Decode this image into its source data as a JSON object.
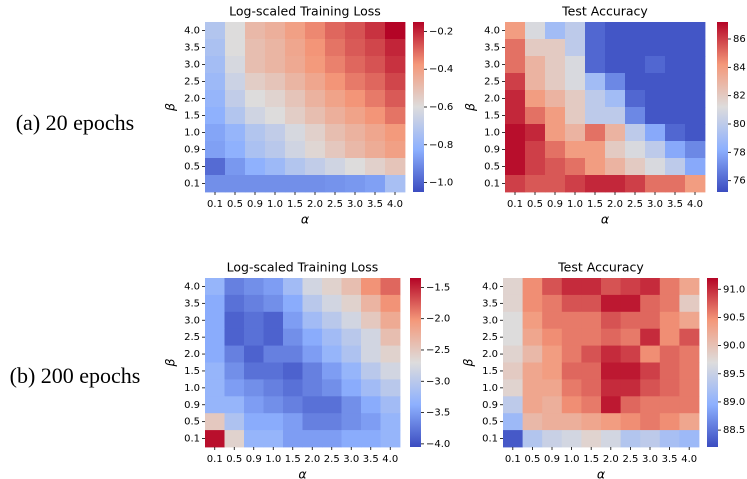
{
  "row_labels": [
    "(a) 20 epochs",
    "(b) 200 epochs"
  ],
  "chart_data": [
    {
      "type": "heatmap",
      "title": "Log-scaled Training Loss",
      "xlabel": "α",
      "ylabel": "β",
      "colormap": "coolwarm",
      "x": [
        "0.1",
        "0.5",
        "0.9",
        "1.0",
        "1.5",
        "2.0",
        "2.5",
        "3.0",
        "3.5",
        "4.0"
      ],
      "y": [
        "4.0",
        "3.5",
        "3.0",
        "2.5",
        "2.0",
        "1.5",
        "1.0",
        "0.9",
        "0.5",
        "0.1"
      ],
      "values": [
        [
          -0.72,
          -0.6,
          -0.48,
          -0.45,
          -0.4,
          -0.35,
          -0.3,
          -0.27,
          -0.22,
          -0.15
        ],
        [
          -0.74,
          -0.6,
          -0.5,
          -0.47,
          -0.42,
          -0.37,
          -0.32,
          -0.28,
          -0.25,
          -0.2
        ],
        [
          -0.76,
          -0.62,
          -0.5,
          -0.47,
          -0.43,
          -0.38,
          -0.34,
          -0.3,
          -0.27,
          -0.22
        ],
        [
          -0.78,
          -0.65,
          -0.55,
          -0.52,
          -0.47,
          -0.42,
          -0.37,
          -0.33,
          -0.3,
          -0.25
        ],
        [
          -0.8,
          -0.68,
          -0.6,
          -0.57,
          -0.52,
          -0.46,
          -0.41,
          -0.37,
          -0.33,
          -0.28
        ],
        [
          -0.82,
          -0.72,
          -0.64,
          -0.6,
          -0.55,
          -0.5,
          -0.45,
          -0.41,
          -0.37,
          -0.32
        ],
        [
          -0.85,
          -0.8,
          -0.72,
          -0.68,
          -0.62,
          -0.56,
          -0.5,
          -0.46,
          -0.42,
          -0.38
        ],
        [
          -0.86,
          -0.82,
          -0.74,
          -0.7,
          -0.64,
          -0.58,
          -0.53,
          -0.48,
          -0.44,
          -0.4
        ],
        [
          -0.98,
          -0.88,
          -0.82,
          -0.78,
          -0.72,
          -0.68,
          -0.64,
          -0.6,
          -0.56,
          -0.52
        ],
        [
          -0.9,
          -0.9,
          -0.9,
          -0.9,
          -0.9,
          -0.9,
          -0.89,
          -0.88,
          -0.86,
          -0.75
        ]
      ],
      "zlim": [
        -1.05,
        -0.15
      ],
      "zticks": [
        {
          "value": -0.2,
          "label": "−0.2"
        },
        {
          "value": -0.4,
          "label": "−0.4"
        },
        {
          "value": -0.6,
          "label": "−0.6"
        },
        {
          "value": -0.8,
          "label": "−0.8"
        },
        {
          "value": -1.0,
          "label": "−1.0"
        }
      ]
    },
    {
      "type": "heatmap",
      "title": "Test Accuracy",
      "xlabel": "α",
      "ylabel": "β",
      "colormap": "coolwarm",
      "x": [
        "0.1",
        "0.5",
        "0.9",
        "1.0",
        "1.5",
        "2.0",
        "2.5",
        "3.0",
        "3.5",
        "4.0"
      ],
      "y": [
        "4.0",
        "3.5",
        "3.0",
        "2.5",
        "2.0",
        "1.5",
        "1.0",
        "0.9",
        "0.5",
        "0.1"
      ],
      "values": [
        [
          84,
          81,
          79,
          80,
          76,
          75.5,
          75.5,
          75.5,
          75.5,
          75.5
        ],
        [
          85,
          82,
          82,
          80,
          76,
          75.5,
          75.5,
          75.5,
          75.5,
          75.5
        ],
        [
          85,
          83,
          82,
          81,
          76,
          75.5,
          75.5,
          76,
          75.5,
          75.5
        ],
        [
          86,
          83,
          82,
          81,
          79,
          77,
          75.5,
          75.5,
          75.5,
          75.5
        ],
        [
          86.5,
          84,
          83,
          82,
          80,
          79,
          76,
          75.5,
          75.5,
          75.5
        ],
        [
          86.5,
          85,
          84,
          82,
          80,
          80,
          77,
          75.5,
          75.5,
          75.5
        ],
        [
          87,
          86.5,
          84,
          83,
          85,
          83,
          80,
          78,
          76,
          75.5
        ],
        [
          87,
          86,
          85,
          84,
          84,
          82,
          81,
          80,
          78,
          77
        ],
        [
          87,
          86,
          85.5,
          85,
          84,
          83,
          82,
          81,
          80,
          78
        ],
        [
          86,
          85.5,
          85.5,
          86,
          86.5,
          86.5,
          86,
          85,
          85,
          84
        ]
      ],
      "zlim": [
        75.2,
        87.2
      ],
      "zticks": [
        76,
        78,
        80,
        82,
        84,
        86
      ]
    },
    {
      "type": "heatmap",
      "title": "Log-scaled Training Loss",
      "xlabel": "α",
      "ylabel": "β",
      "colormap": "coolwarm",
      "x": [
        "0.1",
        "0.5",
        "0.9",
        "1.0",
        "1.5",
        "2.0",
        "2.5",
        "3.0",
        "3.5",
        "4.0"
      ],
      "y": [
        "4.0",
        "3.5",
        "3.0",
        "2.5",
        "2.0",
        "1.5",
        "1.0",
        "0.9",
        "0.5",
        "0.1"
      ],
      "values": [
        [
          -3.3,
          -3.7,
          -3.6,
          -3.5,
          -3.2,
          -2.8,
          -2.6,
          -2.4,
          -2.0,
          -1.8
        ],
        [
          -3.4,
          -3.8,
          -3.7,
          -3.6,
          -3.4,
          -3.0,
          -2.8,
          -2.6,
          -2.3,
          -2.0
        ],
        [
          -3.4,
          -3.9,
          -3.8,
          -3.9,
          -3.5,
          -3.2,
          -3.0,
          -2.8,
          -2.5,
          -2.2
        ],
        [
          -3.4,
          -3.9,
          -3.8,
          -3.9,
          -3.6,
          -3.4,
          -3.2,
          -3.0,
          -2.8,
          -2.4
        ],
        [
          -3.4,
          -3.7,
          -3.9,
          -3.7,
          -3.7,
          -3.5,
          -3.3,
          -3.1,
          -2.8,
          -2.6
        ],
        [
          -3.3,
          -3.6,
          -3.8,
          -3.8,
          -3.9,
          -3.7,
          -3.5,
          -3.3,
          -3.0,
          -2.8
        ],
        [
          -3.3,
          -3.5,
          -3.6,
          -3.7,
          -3.8,
          -3.7,
          -3.6,
          -3.4,
          -3.2,
          -3.0
        ],
        [
          -3.3,
          -3.3,
          -3.5,
          -3.6,
          -3.7,
          -3.8,
          -3.8,
          -3.6,
          -3.4,
          -3.2
        ],
        [
          -2.5,
          -3.1,
          -3.4,
          -3.4,
          -3.5,
          -3.7,
          -3.7,
          -3.6,
          -3.5,
          -3.3
        ],
        [
          -1.4,
          -2.6,
          -3.3,
          -3.3,
          -3.5,
          -3.5,
          -3.5,
          -3.4,
          -3.4,
          -3.3
        ]
      ],
      "zlim": [
        -4.05,
        -1.35
      ],
      "zticks": [
        {
          "value": -1.5,
          "label": "−1.5"
        },
        {
          "value": -2.0,
          "label": "−2.0"
        },
        {
          "value": -2.5,
          "label": "−2.5"
        },
        {
          "value": -3.0,
          "label": "−3.0"
        },
        {
          "value": -3.5,
          "label": "−3.5"
        },
        {
          "value": -4.0,
          "label": "−4.0"
        }
      ]
    },
    {
      "type": "heatmap",
      "title": "Test Accuracy",
      "xlabel": "α",
      "ylabel": "β",
      "colormap": "coolwarm",
      "x": [
        "0.1",
        "0.5",
        "0.9",
        "1.0",
        "1.5",
        "2.0",
        "2.5",
        "3.0",
        "3.5",
        "4.0"
      ],
      "y": [
        "4.0",
        "3.5",
        "3.0",
        "2.5",
        "2.0",
        "1.5",
        "1.0",
        "0.9",
        "0.5",
        "0.1"
      ],
      "values": [
        [
          89.8,
          90.5,
          90.8,
          91.0,
          91.0,
          90.8,
          90.9,
          91.0,
          90.6,
          90.3
        ],
        [
          89.8,
          90.5,
          90.6,
          90.8,
          90.8,
          91.1,
          91.1,
          90.7,
          90.6,
          89.9
        ],
        [
          89.7,
          90.4,
          90.6,
          90.6,
          90.6,
          90.8,
          90.7,
          90.7,
          90.5,
          90.3
        ],
        [
          89.7,
          90.3,
          90.5,
          90.6,
          90.6,
          90.7,
          90.6,
          91.0,
          90.5,
          90.8
        ],
        [
          89.8,
          90.1,
          90.4,
          90.6,
          90.8,
          91.0,
          90.9,
          90.5,
          90.7,
          90.6
        ],
        [
          89.9,
          90.3,
          90.4,
          90.7,
          90.7,
          91.1,
          91.1,
          90.9,
          90.7,
          90.6
        ],
        [
          89.8,
          90.3,
          90.3,
          90.6,
          90.7,
          91.0,
          91.0,
          90.8,
          90.7,
          90.6
        ],
        [
          89.4,
          90.3,
          90.2,
          90.5,
          90.6,
          91.1,
          90.7,
          90.6,
          90.6,
          90.6
        ],
        [
          89.1,
          90.1,
          90.2,
          90.2,
          90.3,
          90.4,
          90.5,
          90.6,
          90.5,
          90.3
        ],
        [
          88.3,
          89.3,
          89.5,
          89.6,
          89.8,
          89.6,
          89.3,
          89.4,
          89.2,
          89.1
        ]
      ],
      "zlim": [
        88.2,
        91.2
      ],
      "zticks": [
        88.5,
        {
          "value": 89.0,
          "label": "89.0"
        },
        89.5,
        {
          "value": 90.0,
          "label": "90.0"
        },
        90.5,
        {
          "value": 91.0,
          "label": "91.0"
        }
      ]
    }
  ]
}
